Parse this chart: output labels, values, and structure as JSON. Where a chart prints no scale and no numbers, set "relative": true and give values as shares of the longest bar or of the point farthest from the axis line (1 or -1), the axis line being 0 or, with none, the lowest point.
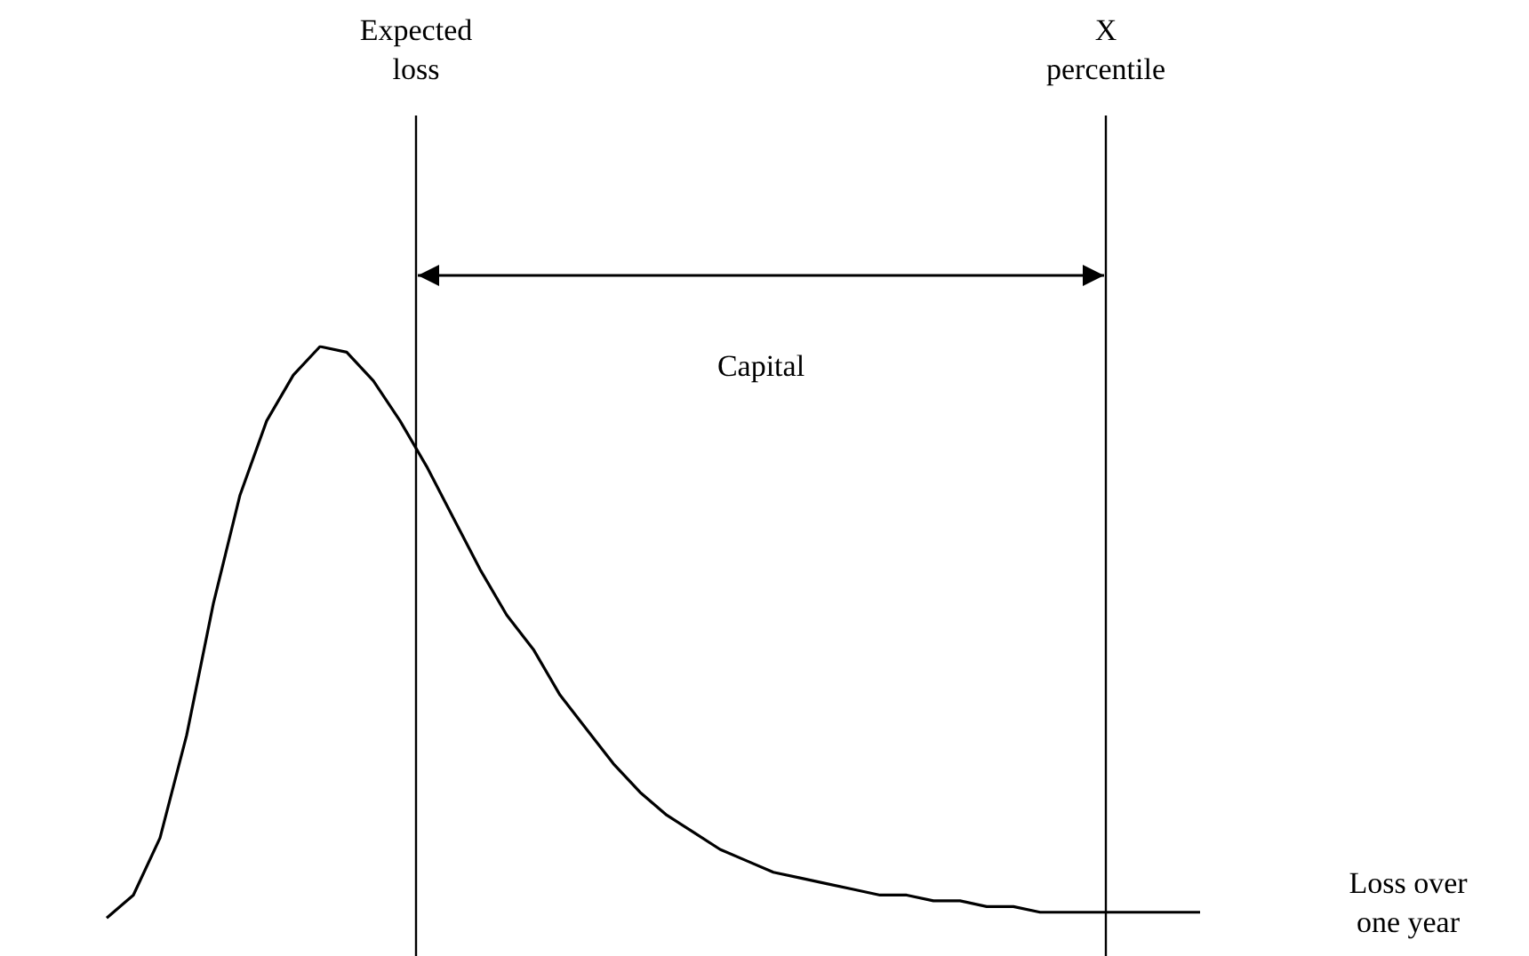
{
  "chart_data": {
    "type": "line",
    "relative": true,
    "xlabel": "Loss over one year",
    "grid": false,
    "legend": false,
    "marker": "none",
    "line_style": "solid",
    "categories": [
      null,
      null,
      null,
      null,
      null,
      null,
      null,
      null,
      null,
      null,
      null,
      null,
      null,
      null,
      null,
      null,
      null,
      null,
      null,
      null,
      null,
      null,
      null,
      null,
      null,
      null,
      null,
      null,
      null,
      null,
      null,
      null,
      null,
      null,
      null,
      null,
      null,
      null,
      null,
      null,
      null,
      null
    ],
    "series": [
      {
        "color": "#000000",
        "values": [
          0,
          0.04,
          0.14,
          0.32,
          0.55,
          0.74,
          0.87,
          0.95,
          1,
          0.99,
          0.94,
          0.87,
          0.79,
          0.7,
          0.61,
          0.53,
          0.47,
          0.39,
          0.33,
          0.27,
          0.22,
          0.18,
          0.15,
          0.12,
          0.1,
          0.08,
          0.07,
          0.06,
          0.05,
          0.04,
          0.04,
          0.03,
          0.03,
          0.02,
          0.02,
          0.01,
          0.01,
          0.01,
          0.01,
          0.01,
          0.01,
          0.01
        ]
      }
    ],
    "annotations": [
      "Expected loss",
      "X percentile",
      "Capital"
    ]
  }
}
